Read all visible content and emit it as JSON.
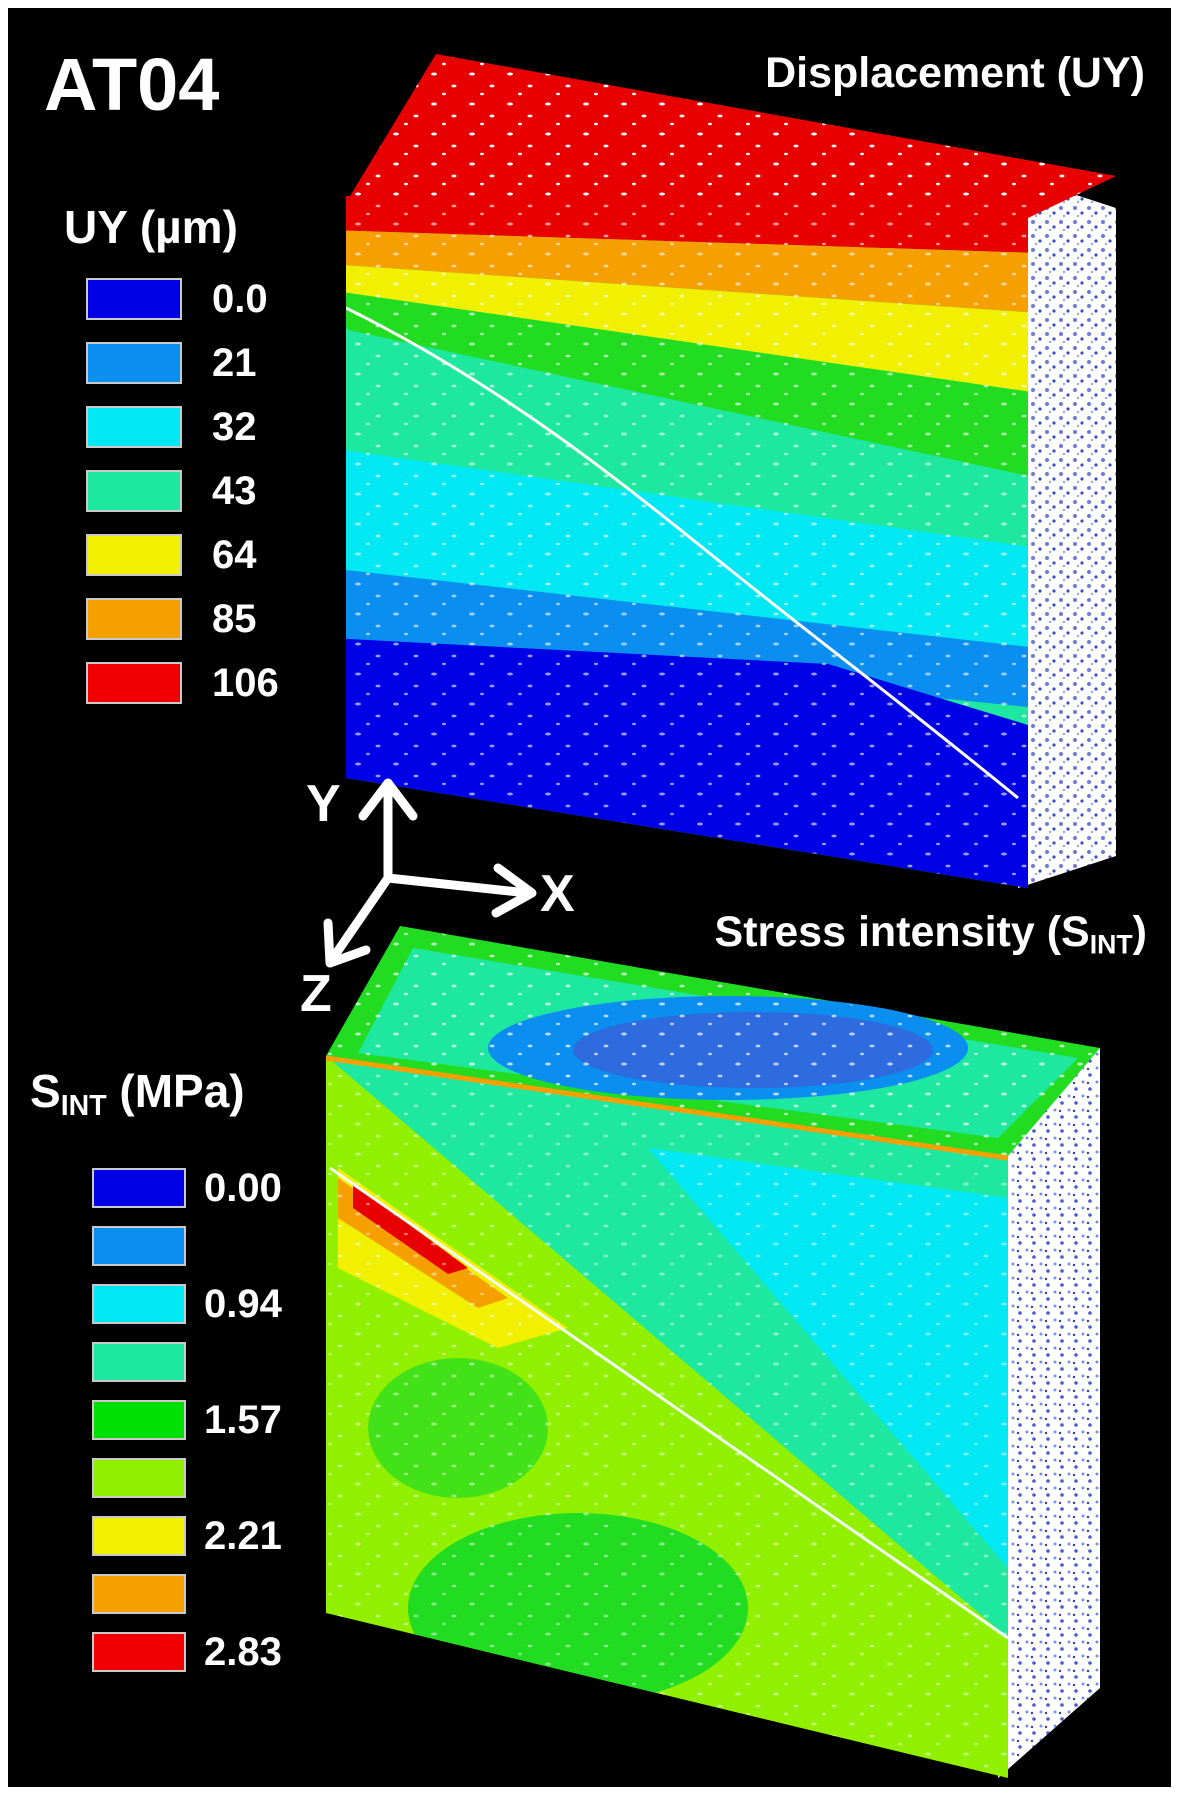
{
  "sample_id": "AT04",
  "uy_panel": {
    "title": "Displacement (UY)",
    "legend_title": "UY (µm)",
    "legend": [
      {
        "label": "0.0",
        "color": "#0000e6"
      },
      {
        "label": "21",
        "color": "#0a8ef0"
      },
      {
        "label": "32",
        "color": "#00e8f4"
      },
      {
        "label": "43",
        "color": "#1ee8a0"
      },
      {
        "label": "64",
        "color": "#f0f000"
      },
      {
        "label": "85",
        "color": "#f5a000"
      },
      {
        "label": "106",
        "color": "#f00000"
      }
    ]
  },
  "sint_panel": {
    "title_main": "Stress intensity (S",
    "title_sub": "INT",
    "title_end": ")",
    "legend_title_main": "S",
    "legend_title_sub": "INT",
    "legend_title_end": " (MPa)",
    "legend": [
      {
        "label": "0.00",
        "color": "#0000e6"
      },
      {
        "label": "",
        "color": "#0a8ef0"
      },
      {
        "label": "0.94",
        "color": "#00e8f4"
      },
      {
        "label": "",
        "color": "#1ee8a0"
      },
      {
        "label": "1.57",
        "color": "#00e000"
      },
      {
        "label": "",
        "color": "#90f000"
      },
      {
        "label": "2.21",
        "color": "#f0f000"
      },
      {
        "label": "",
        "color": "#f5a000"
      },
      {
        "label": "2.83",
        "color": "#f00000"
      }
    ]
  },
  "axes": {
    "x": "X",
    "y": "Y",
    "z": "Z"
  }
}
